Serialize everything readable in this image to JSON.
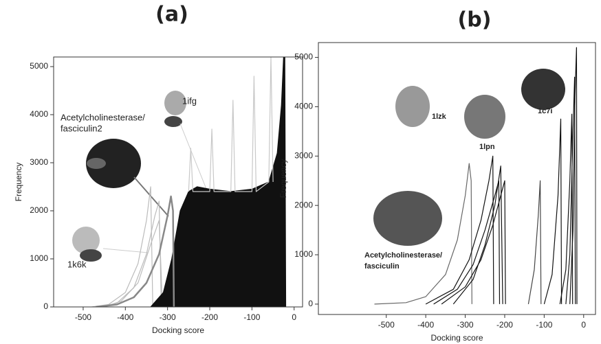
{
  "chart_data": [
    {
      "type": "line",
      "title": "(a)",
      "x_label": "Docking score",
      "y_label": "Frequency",
      "xlim": [
        -570,
        20
      ],
      "ylim": [
        0,
        5200
      ],
      "xticks": [
        -500,
        -400,
        -300,
        -200,
        -100,
        0
      ],
      "yticks": [
        0,
        1000,
        2000,
        3000,
        4000,
        5000
      ],
      "annotations": [
        [
          "Acetylcholinesterase/",
          "fasciculin2"
        ],
        [
          "1ifg"
        ],
        [
          "1k6k"
        ]
      ],
      "series": [
        {
          "color": "#bbbbbb",
          "x": [
            -480,
            -440,
            -400,
            -370,
            -350,
            -340,
            -335
          ],
          "values": [
            0,
            50,
            300,
            900,
            1800,
            2500,
            0
          ]
        },
        {
          "color": "#bbbbbb",
          "x": [
            -460,
            -420,
            -380,
            -350,
            -330,
            -320,
            -315
          ],
          "values": [
            0,
            80,
            400,
            1100,
            1900,
            2200,
            0
          ]
        },
        {
          "color": "#bbbbbb",
          "x": [
            -450,
            -410,
            -370,
            -340,
            -320,
            -312
          ],
          "values": [
            0,
            120,
            500,
            1300,
            1800,
            0
          ]
        },
        {
          "color": "#111111",
          "fill": true,
          "x": [
            -340,
            -310,
            -290,
            -270,
            -250,
            -230,
            -200,
            -150,
            -100,
            -60,
            -40,
            -30,
            -25,
            -22,
            -20
          ],
          "values": [
            0,
            300,
            1000,
            2000,
            2400,
            2500,
            2450,
            2400,
            2450,
            2600,
            3200,
            4200,
            5200,
            5200,
            0
          ]
        },
        {
          "color": "#c8c8c8",
          "x": [
            -250,
            -245,
            -240,
            -200,
            -195,
            -190,
            -150,
            -145,
            -140,
            -100,
            -95,
            -90,
            -60,
            -55,
            -50
          ],
          "values": [
            2400,
            3300,
            2400,
            2400,
            3700,
            2400,
            2400,
            4300,
            2400,
            2400,
            4800,
            2400,
            2600,
            5200,
            2600
          ]
        },
        {
          "color": "#888888",
          "width": 2.5,
          "x": [
            -470,
            -420,
            -380,
            -350,
            -320,
            -300,
            -292,
            -287,
            -285
          ],
          "values": [
            0,
            50,
            200,
            500,
            1100,
            1900,
            2300,
            2000,
            0
          ]
        }
      ]
    },
    {
      "type": "line",
      "title": "(b)",
      "x_label": "Docking score",
      "y_label": "Frequency",
      "xlim": [
        -672,
        30
      ],
      "ylim": [
        -210,
        5300
      ],
      "xticks": [
        -500,
        -400,
        -300,
        -200,
        -100,
        0
      ],
      "yticks": [
        0,
        1000,
        2000,
        3000,
        4000,
        5000
      ],
      "annotations": [
        [
          "1lzk"
        ],
        [
          "1lpn"
        ],
        [
          "1c7i"
        ],
        [
          "Acetylcholinesterase/",
          "fasciculin"
        ]
      ],
      "series": [
        {
          "color": "#666666",
          "x": [
            -530,
            -450,
            -400,
            -350,
            -320,
            -300,
            -290,
            -285,
            -283
          ],
          "values": [
            0,
            30,
            150,
            600,
            1300,
            2200,
            2850,
            2500,
            0
          ]
        },
        {
          "color": "#111111",
          "x": [
            -400,
            -330,
            -290,
            -260,
            -240,
            -230,
            -228
          ],
          "values": [
            0,
            300,
            900,
            1700,
            2500,
            3000,
            0
          ]
        },
        {
          "color": "#111111",
          "x": [
            -380,
            -320,
            -280,
            -250,
            -225,
            -215,
            -213
          ],
          "values": [
            0,
            300,
            800,
            1500,
            2200,
            2500,
            0
          ]
        },
        {
          "color": "#111111",
          "x": [
            -360,
            -300,
            -260,
            -230,
            -210,
            -200,
            -198
          ],
          "values": [
            0,
            350,
            900,
            1600,
            2200,
            2500,
            0
          ]
        },
        {
          "color": "#111111",
          "x": [
            -330,
            -280,
            -250,
            -225,
            -210,
            -205
          ],
          "values": [
            0,
            500,
            1200,
            2000,
            2800,
            0
          ]
        },
        {
          "color": "#444444",
          "x": [
            -140,
            -125,
            -115,
            -110,
            -108
          ],
          "values": [
            0,
            700,
            1800,
            2500,
            0
          ]
        },
        {
          "color": "#111111",
          "x": [
            -100,
            -80,
            -65,
            -58,
            -56
          ],
          "values": [
            0,
            600,
            2200,
            3750,
            0
          ]
        },
        {
          "color": "#111111",
          "x": [
            -60,
            -45,
            -35,
            -30,
            -28
          ],
          "values": [
            0,
            700,
            2500,
            3850,
            0
          ]
        },
        {
          "color": "#111111",
          "x": [
            -45,
            -35,
            -28,
            -23,
            -21
          ],
          "values": [
            0,
            1000,
            3200,
            4600,
            0
          ]
        },
        {
          "color": "#111111",
          "x": [
            -35,
            -27,
            -22,
            -18,
            -17
          ],
          "values": [
            0,
            1500,
            4200,
            5200,
            0
          ]
        }
      ]
    }
  ]
}
